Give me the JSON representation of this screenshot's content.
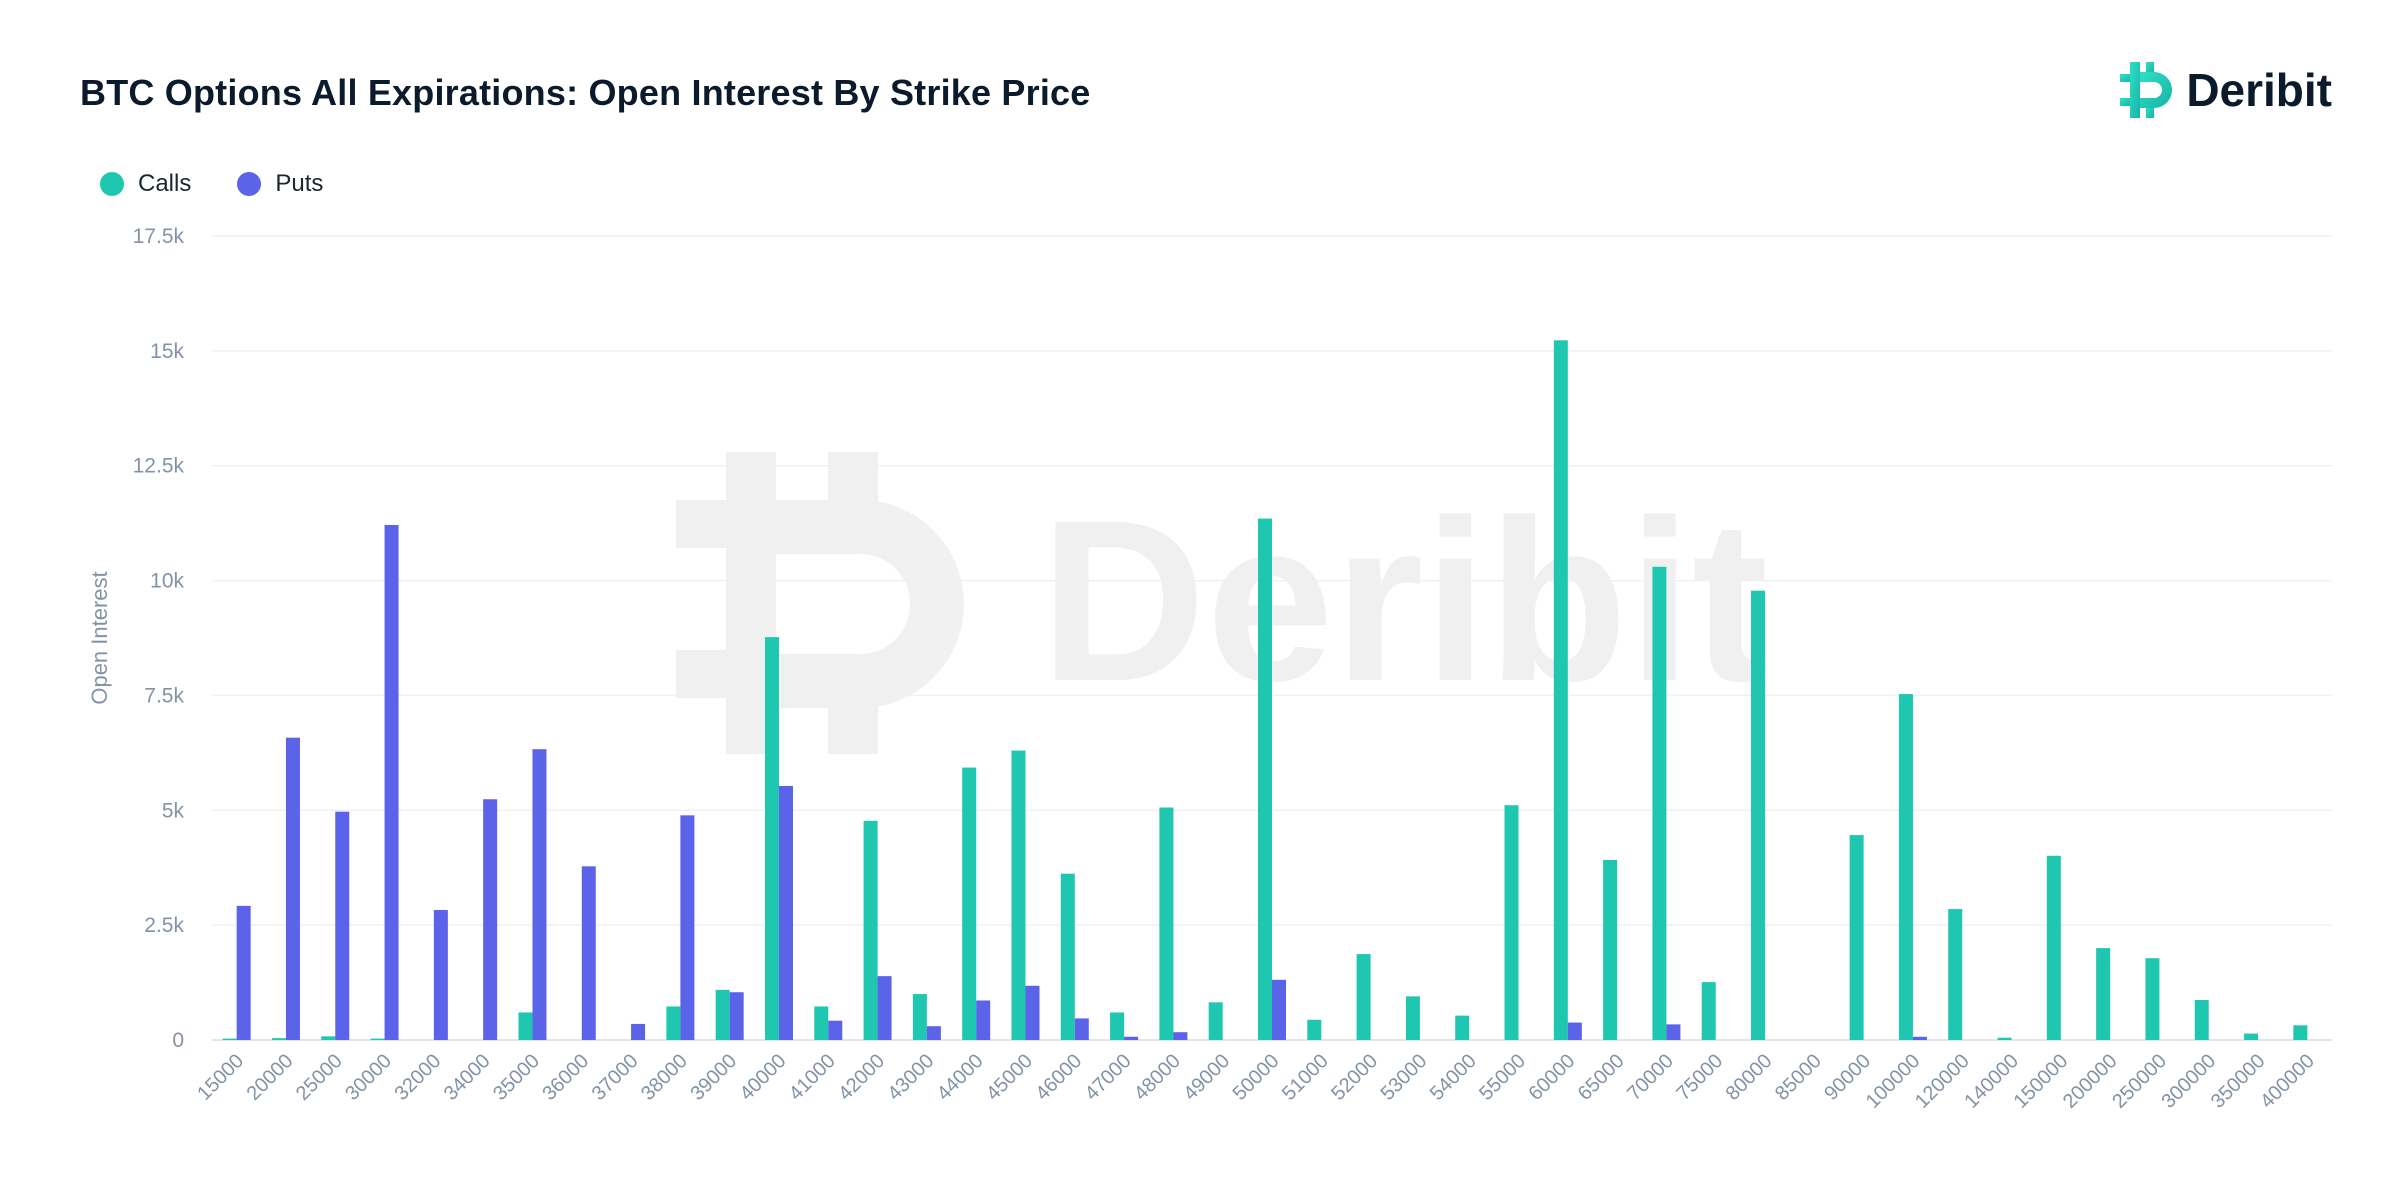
{
  "header": {
    "title": "BTC Options All Expirations: Open Interest By Strike Price",
    "brand": "Deribit"
  },
  "watermark": "Deribit",
  "legend": {
    "calls": "Calls",
    "puts": "Puts"
  },
  "colors": {
    "calls": "#1fc7b1",
    "puts": "#5b63e8",
    "grid": "#eef1f4",
    "axis_text": "#8393a7",
    "title": "#0b1b2b"
  },
  "chart_data": {
    "type": "bar",
    "title": "BTC Options All Expirations: Open Interest By Strike Price",
    "xlabel": "",
    "ylabel": "Open Interest",
    "ylim": [
      0,
      17500
    ],
    "yticks": [
      0,
      2500,
      5000,
      7500,
      10000,
      12500,
      15000,
      17500
    ],
    "ytick_labels": [
      "0",
      "2.5k",
      "5k",
      "7.5k",
      "10k",
      "12.5k",
      "15k",
      "17.5k"
    ],
    "grid": true,
    "legend_position": "top-left",
    "categories": [
      "15000",
      "20000",
      "25000",
      "30000",
      "32000",
      "34000",
      "35000",
      "36000",
      "37000",
      "38000",
      "39000",
      "40000",
      "41000",
      "42000",
      "43000",
      "44000",
      "45000",
      "46000",
      "47000",
      "48000",
      "49000",
      "50000",
      "51000",
      "52000",
      "53000",
      "54000",
      "55000",
      "60000",
      "65000",
      "70000",
      "75000",
      "80000",
      "85000",
      "90000",
      "100000",
      "120000",
      "140000",
      "150000",
      "200000",
      "250000",
      "300000",
      "350000",
      "400000"
    ],
    "series": [
      {
        "name": "Calls",
        "values": [
          30,
          40,
          80,
          30,
          0,
          0,
          600,
          0,
          0,
          730,
          1090,
          8770,
          730,
          4770,
          1000,
          5930,
          6300,
          3620,
          600,
          5060,
          820,
          11350,
          440,
          1870,
          950,
          530,
          5110,
          15230,
          3920,
          10300,
          1260,
          9780,
          0,
          4460,
          7530,
          2850,
          50,
          4010,
          2000,
          1780,
          870,
          140,
          320
        ]
      },
      {
        "name": "Puts",
        "values": [
          2920,
          6580,
          4970,
          11210,
          2830,
          5240,
          6330,
          3780,
          350,
          4890,
          1040,
          5530,
          420,
          1390,
          300,
          860,
          1180,
          470,
          70,
          170,
          0,
          1310,
          0,
          0,
          0,
          0,
          0,
          380,
          0,
          340,
          0,
          0,
          0,
          0,
          70,
          0,
          0,
          0,
          0,
          0,
          0,
          0,
          0
        ]
      }
    ]
  }
}
